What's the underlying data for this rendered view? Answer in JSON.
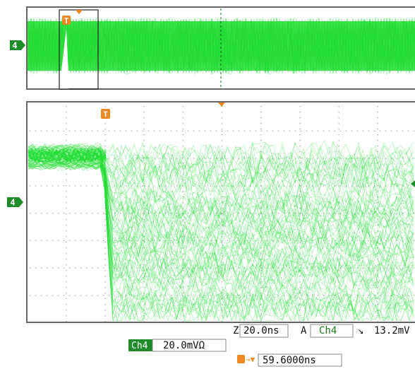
{
  "scope": {
    "trace_color": "#22dd33",
    "marker_color": "#ee8822",
    "channel_badge_color": "#1e8c2a",
    "overview_channel_label": "4",
    "main_channel_label": "4",
    "trigger_label": "T"
  },
  "readout": {
    "horizontal_symbol": "Z",
    "timebase": "20.0ns",
    "trigger_mode": "A",
    "trigger_source": "Ch4",
    "trigger_slope_symbol": "↘",
    "trigger_level": "13.2mV",
    "channel_name": "Ch4",
    "channel_scale": "20.0mVΩ",
    "delay_symbol": "T→▼",
    "delay_value": "59.6000ns"
  }
}
